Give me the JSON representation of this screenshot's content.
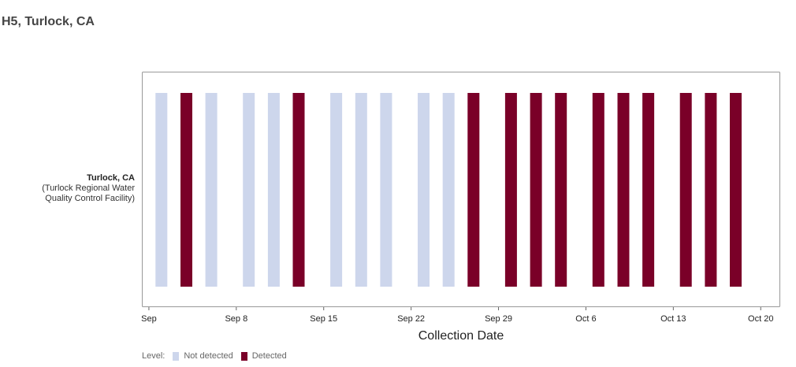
{
  "page": {
    "title": "H5, Turlock, CA"
  },
  "site": {
    "name": "Turlock, CA",
    "facility_line1": "(Turlock Regional Water",
    "facility_line2": "Quality Control Facility)"
  },
  "legend": {
    "title": "Level:",
    "items": [
      {
        "label": "Not detected",
        "color": "#cdd6ec"
      },
      {
        "label": "Detected",
        "color": "#7a0028"
      }
    ]
  },
  "chart_data": {
    "type": "bar",
    "xlabel": "Collection Date",
    "ylabel": "",
    "x_ticks": [
      "Sep",
      "Sep 8",
      "Sep 15",
      "Sep 22",
      "Sep 29",
      "Oct 6",
      "Oct 13",
      "Oct 20"
    ],
    "x_tick_days": [
      1,
      8,
      15,
      22,
      29,
      36,
      43,
      50
    ],
    "xlim_days": [
      0.5,
      51.5
    ],
    "samples": [
      {
        "date": "Sep 2",
        "day": 2,
        "level": "Not detected"
      },
      {
        "date": "Sep 4",
        "day": 4,
        "level": "Detected"
      },
      {
        "date": "Sep 6",
        "day": 6,
        "level": "Not detected"
      },
      {
        "date": "Sep 9",
        "day": 9,
        "level": "Not detected"
      },
      {
        "date": "Sep 11",
        "day": 11,
        "level": "Not detected"
      },
      {
        "date": "Sep 13",
        "day": 13,
        "level": "Detected"
      },
      {
        "date": "Sep 16",
        "day": 16,
        "level": "Not detected"
      },
      {
        "date": "Sep 18",
        "day": 18,
        "level": "Not detected"
      },
      {
        "date": "Sep 20",
        "day": 20,
        "level": "Not detected"
      },
      {
        "date": "Sep 23",
        "day": 23,
        "level": "Not detected"
      },
      {
        "date": "Sep 25",
        "day": 25,
        "level": "Not detected"
      },
      {
        "date": "Sep 27",
        "day": 27,
        "level": "Detected"
      },
      {
        "date": "Sep 30",
        "day": 30,
        "level": "Detected"
      },
      {
        "date": "Oct 2",
        "day": 32,
        "level": "Detected"
      },
      {
        "date": "Oct 4",
        "day": 34,
        "level": "Detected"
      },
      {
        "date": "Oct 7",
        "day": 37,
        "level": "Detected"
      },
      {
        "date": "Oct 9",
        "day": 39,
        "level": "Detected"
      },
      {
        "date": "Oct 11",
        "day": 41,
        "level": "Detected"
      },
      {
        "date": "Oct 14",
        "day": 44,
        "level": "Detected"
      },
      {
        "date": "Oct 16",
        "day": 46,
        "level": "Detected"
      },
      {
        "date": "Oct 18",
        "day": 48,
        "level": "Detected"
      }
    ]
  }
}
